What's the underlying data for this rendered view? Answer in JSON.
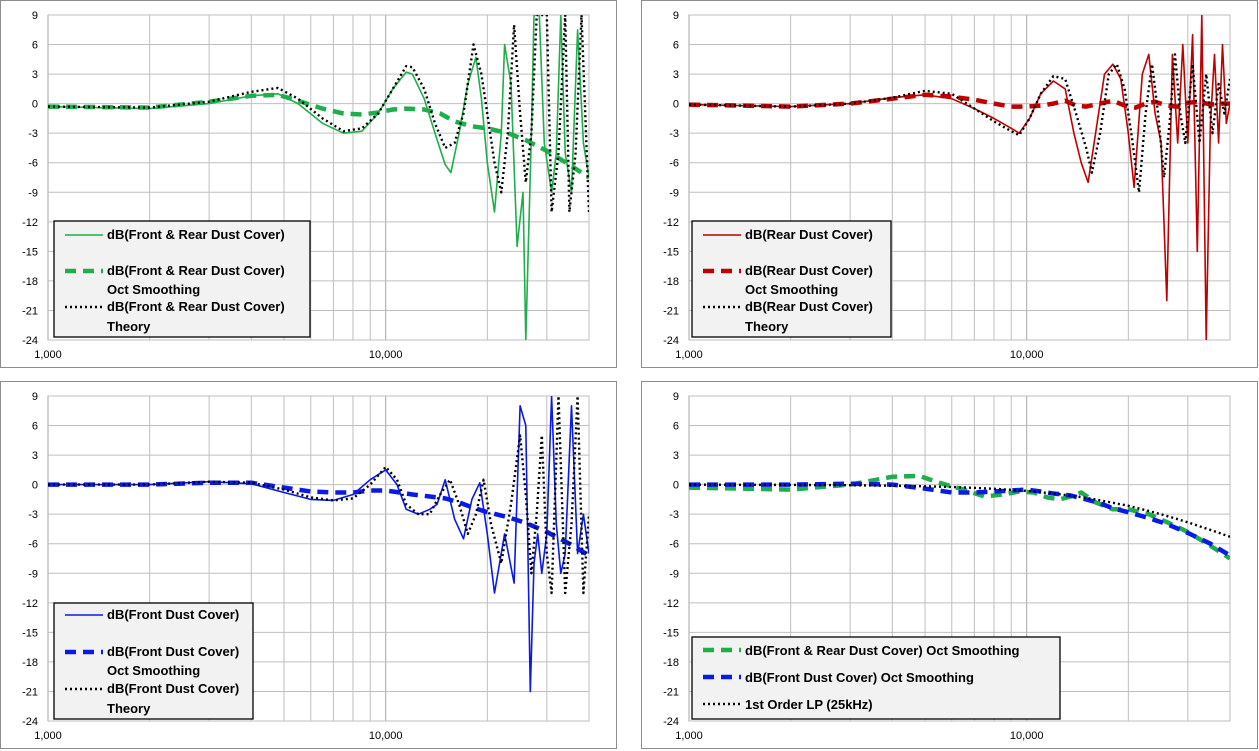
{
  "colors": {
    "green": "#1fae4b",
    "red": "#c00000",
    "blue": "#0a1ae6",
    "black": "#000000",
    "grid": "#bfbfbf",
    "legend_bg": "#f2f2f2"
  },
  "chart_data": [
    {
      "type": "line",
      "x_scale": "log",
      "xlim": [
        1000,
        40000
      ],
      "ylim": [
        -24,
        9
      ],
      "x_tick_labels": [
        "1,000",
        "10,000"
      ],
      "y_ticks": [
        9,
        6,
        3,
        0,
        -3,
        -6,
        -9,
        -12,
        -15,
        -18,
        -21,
        -24
      ],
      "grid": true,
      "legend_position": "bottom-left",
      "series": [
        {
          "name": "dB(Front & Rear Dust Cover)",
          "style": "thin",
          "color": "#1fae4b",
          "x": [
            1000,
            2000,
            3000,
            4000,
            4800,
            5500,
            6500,
            7500,
            8500,
            9500,
            10500,
            11500,
            12000,
            13000,
            14000,
            15000,
            15600,
            16500,
            17500,
            18500,
            19200,
            20000,
            21000,
            22000,
            22500,
            23500,
            24500,
            25500,
            26000,
            27000,
            27500,
            28500,
            29500,
            31000,
            32000,
            33000,
            34000,
            35500,
            37000,
            38500,
            40000
          ],
          "y": [
            -0.3,
            -0.5,
            0,
            0.8,
            1,
            0,
            -2,
            -3,
            -2.8,
            -1,
            1.5,
            3.2,
            3,
            0.5,
            -3,
            -6.2,
            -7,
            -3,
            2,
            4.7,
            0.5,
            -6,
            -11,
            -3,
            6,
            2,
            -14.5,
            -9,
            -24,
            -3,
            9,
            9,
            -4,
            -9,
            -5,
            9,
            -5,
            -9,
            7.5,
            -4,
            -7.5
          ]
        },
        {
          "name": "dB(Front & Rear Dust Cover) Oct Smoothing",
          "style": "thick-dash",
          "color": "#1fae4b",
          "x": [
            1000,
            2000,
            3000,
            4000,
            4800,
            5500,
            6500,
            7500,
            8500,
            9500,
            10500,
            11500,
            13000,
            14500,
            16000,
            18000,
            20000,
            23000,
            26000,
            30000,
            35000,
            40000
          ],
          "y": [
            -0.3,
            -0.4,
            0.2,
            0.8,
            0.9,
            0.3,
            -0.5,
            -1,
            -1.1,
            -0.9,
            -0.6,
            -0.5,
            -0.6,
            -1,
            -1.8,
            -2.3,
            -2.5,
            -3,
            -3.7,
            -4.8,
            -6.2,
            -7.5
          ]
        },
        {
          "name": "dB(Front & Rear Dust Cover) Theory",
          "style": "dotted",
          "color": "#000000",
          "x": [
            1000,
            2000,
            3000,
            4000,
            4800,
            5500,
            6500,
            7500,
            8500,
            9500,
            10500,
            11500,
            12000,
            13000,
            14000,
            15000,
            16000,
            17000,
            18200,
            19200,
            20000,
            21000,
            22000,
            23000,
            24000,
            25000,
            26000,
            27000,
            28000,
            30000,
            31000,
            32500,
            34000,
            35000,
            36500,
            38000,
            40000
          ],
          "y": [
            -0.3,
            -0.4,
            0.2,
            1.2,
            1.6,
            0.5,
            -1.5,
            -2.8,
            -2.5,
            -1,
            1.5,
            3.8,
            3.7,
            1.5,
            -2,
            -4.5,
            -4,
            -1,
            6,
            3,
            -1,
            -6,
            -9,
            -3,
            8,
            -1,
            -8,
            -3,
            9,
            9,
            -11,
            -5,
            9,
            -11,
            -5,
            9,
            -11
          ]
        }
      ]
    },
    {
      "type": "line",
      "x_scale": "log",
      "xlim": [
        1000,
        40000
      ],
      "ylim": [
        -24,
        9
      ],
      "x_tick_labels": [
        "1,000",
        "10,000"
      ],
      "y_ticks": [
        9,
        6,
        3,
        0,
        -3,
        -6,
        -9,
        -12,
        -15,
        -18,
        -21,
        -24
      ],
      "grid": true,
      "legend_position": "bottom-left",
      "series": [
        {
          "name": "dB(Rear Dust Cover)",
          "style": "thin",
          "color": "#c00000",
          "x": [
            1000,
            2000,
            3000,
            4000,
            5000,
            6000,
            7000,
            8000,
            9000,
            9500,
            10200,
            11000,
            12000,
            13000,
            13800,
            14500,
            15200,
            16000,
            17000,
            18000,
            19000,
            20000,
            20800,
            22000,
            23000,
            24000,
            25000,
            26000,
            27000,
            28000,
            29000,
            30000,
            31000,
            32000,
            33000,
            34000,
            35000,
            36000,
            37000,
            38000,
            39000,
            40000
          ],
          "y": [
            -0.1,
            -0.3,
            0,
            0.6,
            0.9,
            0.5,
            -0.5,
            -1.5,
            -2.5,
            -3,
            -1.5,
            1,
            2.3,
            1.5,
            -3,
            -6,
            -8,
            -3,
            3,
            4,
            2.5,
            -3,
            -8.5,
            3,
            5,
            -1,
            -4,
            -20,
            5,
            -4,
            6,
            -4,
            7,
            -15,
            9,
            -24,
            -2,
            5,
            -4,
            6,
            -2,
            0
          ]
        },
        {
          "name": "dB(Rear Dust Cover) Oct Smoothing",
          "style": "thick-dash",
          "color": "#c00000",
          "x": [
            1000,
            2000,
            3000,
            4000,
            5000,
            6000,
            7000,
            8000,
            9000,
            10000,
            11000,
            12000,
            13000,
            14000,
            15000,
            16500,
            18000,
            19500,
            21000,
            22500,
            24000,
            26000,
            28000,
            30000,
            32500,
            35000,
            37500,
            40000
          ],
          "y": [
            -0.1,
            -0.3,
            0,
            0.5,
            0.9,
            0.7,
            0.4,
            0,
            -0.3,
            -0.3,
            -0.2,
            0,
            0.3,
            -0.2,
            -0.3,
            0,
            0.3,
            -0.2,
            -0.4,
            0,
            0.2,
            -0.2,
            -0.3,
            0.1,
            0.2,
            -0.1,
            0,
            0
          ]
        },
        {
          "name": "dB(Rear Dust Cover) Theory",
          "style": "dotted",
          "color": "#000000",
          "x": [
            1000,
            2000,
            3000,
            4000,
            5000,
            6000,
            7000,
            8000,
            9000,
            9500,
            10200,
            11000,
            12000,
            13000,
            14000,
            15000,
            15600,
            16500,
            17500,
            18500,
            19500,
            20500,
            21500,
            22500,
            23500,
            24500,
            25500,
            26500,
            27500,
            28500,
            29500,
            31000,
            32500,
            34000,
            35500,
            37000,
            38500,
            40000
          ],
          "y": [
            -0.1,
            -0.3,
            0,
            0.6,
            1.3,
            1,
            -0.5,
            -1.8,
            -2.8,
            -3.2,
            -1.5,
            1,
            2.8,
            2.5,
            -1,
            -4.5,
            -7,
            -3,
            3,
            4,
            1.5,
            -3.5,
            -9,
            -1,
            4,
            -1,
            -7.5,
            -2,
            5,
            -1,
            -4,
            4,
            -4,
            3,
            -3,
            2,
            -1,
            2.5
          ]
        }
      ]
    },
    {
      "type": "line",
      "x_scale": "log",
      "xlim": [
        1000,
        40000
      ],
      "ylim": [
        -24,
        9
      ],
      "x_tick_labels": [
        "1,000",
        "10,000"
      ],
      "y_ticks": [
        9,
        6,
        3,
        0,
        -3,
        -6,
        -9,
        -12,
        -15,
        -18,
        -21,
        -24
      ],
      "grid": true,
      "legend_position": "bottom-left",
      "series": [
        {
          "name": "dB(Front Dust Cover)",
          "style": "thin",
          "color": "#0a1ae6",
          "x": [
            1000,
            2000,
            3000,
            4000,
            5000,
            6000,
            7000,
            8000,
            9000,
            10000,
            10800,
            11500,
            12500,
            13500,
            14200,
            15000,
            16000,
            17000,
            18000,
            19000,
            20000,
            21000,
            22500,
            24000,
            25000,
            26000,
            26800,
            27500,
            28200,
            29000,
            30000,
            31000,
            32000,
            33000,
            34000,
            35500,
            37000,
            38500,
            40000
          ],
          "y": [
            0,
            0,
            0.3,
            0.1,
            -0.8,
            -1.5,
            -1.6,
            -1,
            0.5,
            1.5,
            0,
            -2.5,
            -3,
            -2.5,
            -2,
            0.5,
            -3.5,
            -5.5,
            -1.5,
            0.2,
            -5,
            -11,
            -5,
            -10,
            8,
            6,
            -21,
            -8,
            -5,
            -9,
            -5,
            9,
            -4,
            -9,
            -7,
            8,
            -7,
            -3,
            -7
          ]
        },
        {
          "name": "dB(Front Dust Cover) Oct Smoothing",
          "style": "thick-dash",
          "color": "#0a1ae6",
          "x": [
            1000,
            2000,
            3000,
            4000,
            5000,
            6000,
            7000,
            8000,
            9000,
            10000,
            11000,
            12000,
            13500,
            15000,
            16500,
            18000,
            20000,
            23000,
            26000,
            30000,
            35000,
            40000
          ],
          "y": [
            0,
            0,
            0.2,
            0.2,
            -0.3,
            -0.7,
            -0.8,
            -0.8,
            -0.6,
            -0.6,
            -0.8,
            -1,
            -1.2,
            -1.4,
            -1.8,
            -2.3,
            -2.8,
            -3.3,
            -3.9,
            -4.8,
            -6,
            -7.2
          ]
        },
        {
          "name": "dB(Front Dust Cover) Theory",
          "style": "dotted",
          "color": "#000000",
          "x": [
            1000,
            2000,
            3000,
            4000,
            5000,
            6000,
            7000,
            8000,
            9000,
            10000,
            10800,
            11500,
            12500,
            13500,
            14500,
            15500,
            16500,
            17500,
            18500,
            19500,
            20500,
            22000,
            23500,
            25000,
            26000,
            27000,
            28000,
            29000,
            30000,
            31000,
            32500,
            34000,
            35500,
            37000,
            38500,
            40000
          ],
          "y": [
            0,
            0,
            0.3,
            0.2,
            -0.5,
            -1.3,
            -1.6,
            -1.4,
            0,
            1.8,
            0.5,
            -2,
            -3,
            -3,
            -1,
            0.5,
            -2,
            -5,
            -3,
            0.5,
            -4,
            -8,
            -2,
            5,
            -1,
            -9,
            -3,
            5,
            -7,
            -11,
            9,
            -11,
            -4,
            9,
            -11,
            -3
          ]
        }
      ]
    },
    {
      "type": "line",
      "x_scale": "log",
      "xlim": [
        1000,
        40000
      ],
      "ylim": [
        -24,
        9
      ],
      "x_tick_labels": [
        "1,000",
        "10,000"
      ],
      "y_ticks": [
        9,
        6,
        3,
        0,
        -3,
        -6,
        -9,
        -12,
        -15,
        -18,
        -21,
        -24
      ],
      "grid": true,
      "legend_position": "bottom-left",
      "series": [
        {
          "name": "dB(Front & Rear Dust Cover) Oct Smoothing",
          "style": "thick-dash",
          "color": "#1fae4b",
          "x": [
            1000,
            2000,
            3000,
            4000,
            4800,
            5500,
            6500,
            7500,
            8500,
            9500,
            10500,
            11500,
            12500,
            13500,
            14500,
            16000,
            18000,
            20000,
            23000,
            26000,
            30000,
            35000,
            40000
          ],
          "y": [
            -0.3,
            -0.5,
            0,
            0.8,
            0.9,
            0.2,
            -0.5,
            -1.2,
            -1,
            -0.7,
            -0.8,
            -1.3,
            -1.5,
            -1.2,
            -0.8,
            -1.8,
            -2.5,
            -2.5,
            -3,
            -3.8,
            -4.8,
            -6.2,
            -7.5
          ]
        },
        {
          "name": "dB(Front Dust Cover) Oct Smoothing",
          "style": "thick-dash",
          "color": "#0a1ae6",
          "x": [
            1000,
            2000,
            3000,
            4000,
            5000,
            6000,
            7000,
            8000,
            9000,
            10000,
            11000,
            12000,
            13500,
            15000,
            16500,
            18000,
            20000,
            23000,
            26000,
            30000,
            35000,
            40000
          ],
          "y": [
            0,
            0,
            0.1,
            0,
            -0.4,
            -0.8,
            -0.8,
            -0.7,
            -0.6,
            -0.5,
            -0.7,
            -0.9,
            -1.1,
            -1.5,
            -1.9,
            -2.4,
            -2.8,
            -3.4,
            -4,
            -4.9,
            -6,
            -7.2
          ]
        },
        {
          "name": "1st Order LP (25kHz)",
          "style": "dotted",
          "color": "#000000",
          "x": [
            1000,
            2000,
            3000,
            4000,
            5000,
            6000,
            7000,
            8000,
            9000,
            10000,
            12000,
            14000,
            16000,
            18000,
            20000,
            22000,
            25000,
            28000,
            31000,
            34000,
            37000,
            40000
          ],
          "y": [
            -0.01,
            -0.03,
            -0.06,
            -0.11,
            -0.17,
            -0.24,
            -0.33,
            -0.42,
            -0.53,
            -0.64,
            -0.9,
            -1.19,
            -1.5,
            -1.84,
            -2.15,
            -2.5,
            -3.01,
            -3.51,
            -3.99,
            -4.45,
            -4.88,
            -5.3
          ]
        }
      ]
    }
  ]
}
